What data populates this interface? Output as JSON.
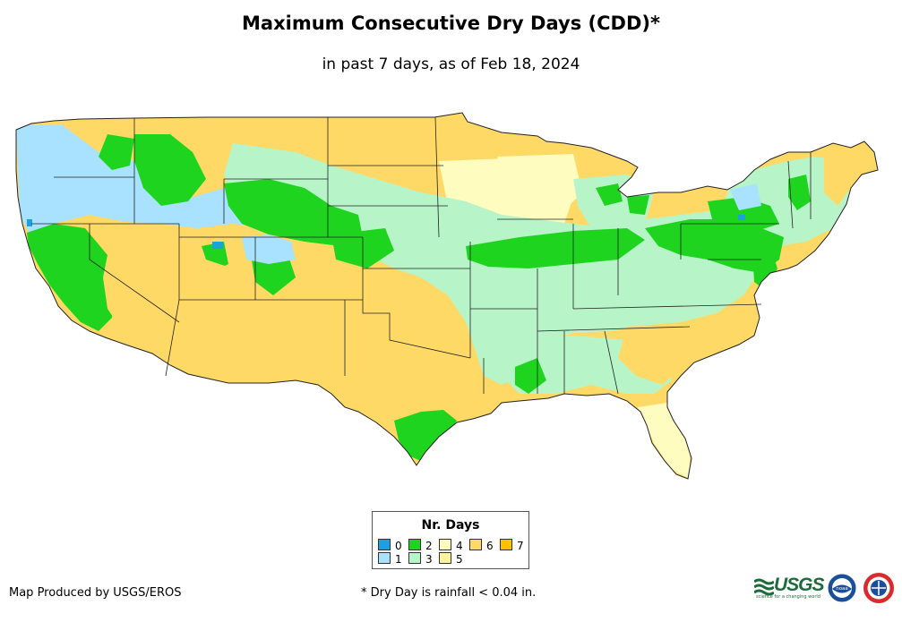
{
  "title": "Maximum Consecutive Dry Days (CDD)*",
  "subtitle": "in past 7 days, as of Feb 18, 2024",
  "legend": {
    "title": "Nr. Days",
    "items": [
      {
        "label": "0",
        "color": "#1ba1e2"
      },
      {
        "label": "1",
        "color": "#a8e2ff"
      },
      {
        "label": "2",
        "color": "#1ed41e"
      },
      {
        "label": "3",
        "color": "#b7f5c8"
      },
      {
        "label": "4",
        "color": "#fffcc0"
      },
      {
        "label": "5",
        "color": "#fff29a"
      },
      {
        "label": "6",
        "color": "#ffd966"
      },
      {
        "label": "7",
        "color": "#ffc000"
      }
    ]
  },
  "footer": {
    "credit": "Map Produced by USGS/EROS",
    "note": "* Dry Day is rainfall < 0.04 in."
  },
  "logos": {
    "usgs": "USGS",
    "usgs_tagline": "science for a changing world",
    "noaa": "noaa"
  },
  "icons": {
    "usgs": "usgs-logo",
    "noaa": "noaa-logo",
    "nws": "nws-logo"
  }
}
